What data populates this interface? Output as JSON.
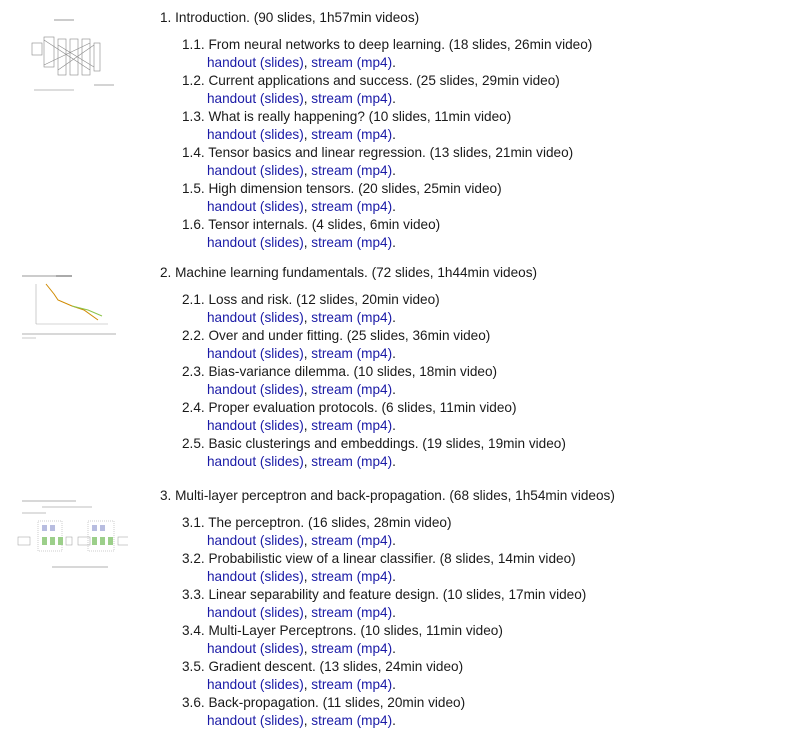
{
  "sections": [
    {
      "title": "1. Introduction. (90 slides, 1h57min videos)",
      "items": [
        {
          "num": "1.1.",
          "text": "From neural networks to deep learning. (18 slides, 26min video)"
        },
        {
          "num": "1.2.",
          "text": "Current applications and success. (25 slides, 29min video)"
        },
        {
          "num": "1.3.",
          "text": "What is really happening? (10 slides, 11min video)"
        },
        {
          "num": "1.4.",
          "text": "Tensor basics and linear regression. (13 slides, 21min video)"
        },
        {
          "num": "1.5.",
          "text": "High dimension tensors. (20 slides, 25min video)"
        },
        {
          "num": "1.6.",
          "text": "Tensor internals. (4 slides, 6min video)"
        }
      ]
    },
    {
      "title": "2. Machine learning fundamentals. (72 slides, 1h44min videos)",
      "items": [
        {
          "num": "2.1.",
          "text": "Loss and risk. (12 slides, 20min video)"
        },
        {
          "num": "2.2.",
          "text": "Over and under fitting. (25 slides, 36min video)"
        },
        {
          "num": "2.3.",
          "text": "Bias-variance dilemma. (10 slides, 18min video)"
        },
        {
          "num": "2.4.",
          "text": "Proper evaluation protocols. (6 slides, 11min video)"
        },
        {
          "num": "2.5.",
          "text": "Basic clusterings and embeddings. (19 slides, 19min video)"
        }
      ]
    },
    {
      "title": "3. Multi-layer perceptron and back-propagation. (68 slides, 1h54min videos)",
      "items": [
        {
          "num": "3.1.",
          "text": "The perceptron. (16 slides, 28min video)"
        },
        {
          "num": "3.2.",
          "text": "Probabilistic view of a linear classifier. (8 slides, 14min video)"
        },
        {
          "num": "3.3.",
          "text": "Linear separability and feature design. (10 slides, 17min video)"
        },
        {
          "num": "3.4.",
          "text": "Multi-Layer Perceptrons. (10 slides, 11min video)"
        },
        {
          "num": "3.5.",
          "text": "Gradient descent. (13 slides, 24min video)"
        },
        {
          "num": "3.6.",
          "text": "Back-propagation. (11 slides, 20min video)"
        }
      ]
    }
  ],
  "links": {
    "handout": "handout",
    "slides": "(slides)",
    "stream": "stream",
    "mp4": "(mp4)",
    "comma": ", ",
    "period": "."
  },
  "colors": {
    "link": "#1a1aa6",
    "text": "#1a1a1a"
  }
}
